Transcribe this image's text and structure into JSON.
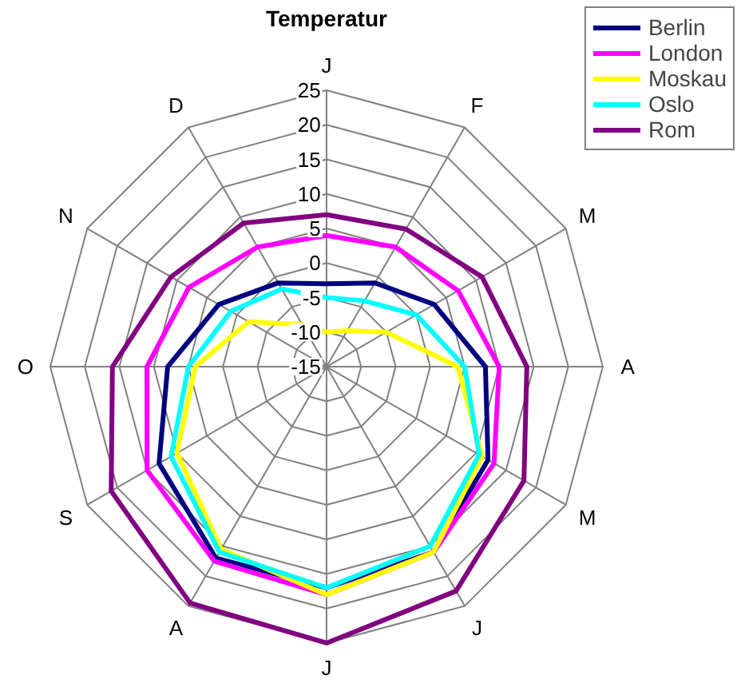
{
  "chart_data": {
    "type": "radar",
    "title": "Temperatur",
    "categories": [
      "J",
      "F",
      "M",
      "A",
      "M",
      "J",
      "J",
      "A",
      "S",
      "O",
      "N",
      "D"
    ],
    "ylim": [
      -15,
      25
    ],
    "yticks": [
      -15,
      -10,
      -5,
      0,
      5,
      10,
      15,
      20,
      25
    ],
    "grid": true,
    "legend": "top right",
    "series": [
      {
        "name": "Berlin",
        "color": "#000080",
        "values": [
          -3,
          -1,
          3,
          8,
          12,
          16,
          17,
          17,
          13,
          8,
          3,
          -1
        ]
      },
      {
        "name": "London",
        "color": "#ff00ff",
        "values": [
          4,
          5,
          7,
          10,
          13,
          16,
          18,
          17.5,
          15,
          11,
          8,
          5
        ]
      },
      {
        "name": "Moskau",
        "color": "#ffff00",
        "values": [
          -10,
          -9,
          -5,
          4,
          11,
          16,
          18,
          15.5,
          10,
          4,
          -2,
          -8
        ]
      },
      {
        "name": "Oslo",
        "color": "#00ffff",
        "values": [
          -5,
          -4,
          0,
          5,
          10.5,
          15,
          17,
          16,
          11,
          5,
          1,
          -2
        ]
      },
      {
        "name": "Rom",
        "color": "#800080",
        "values": [
          7,
          8,
          11,
          14,
          18,
          22.5,
          25,
          24.5,
          21,
          16,
          11,
          9
        ]
      }
    ]
  }
}
